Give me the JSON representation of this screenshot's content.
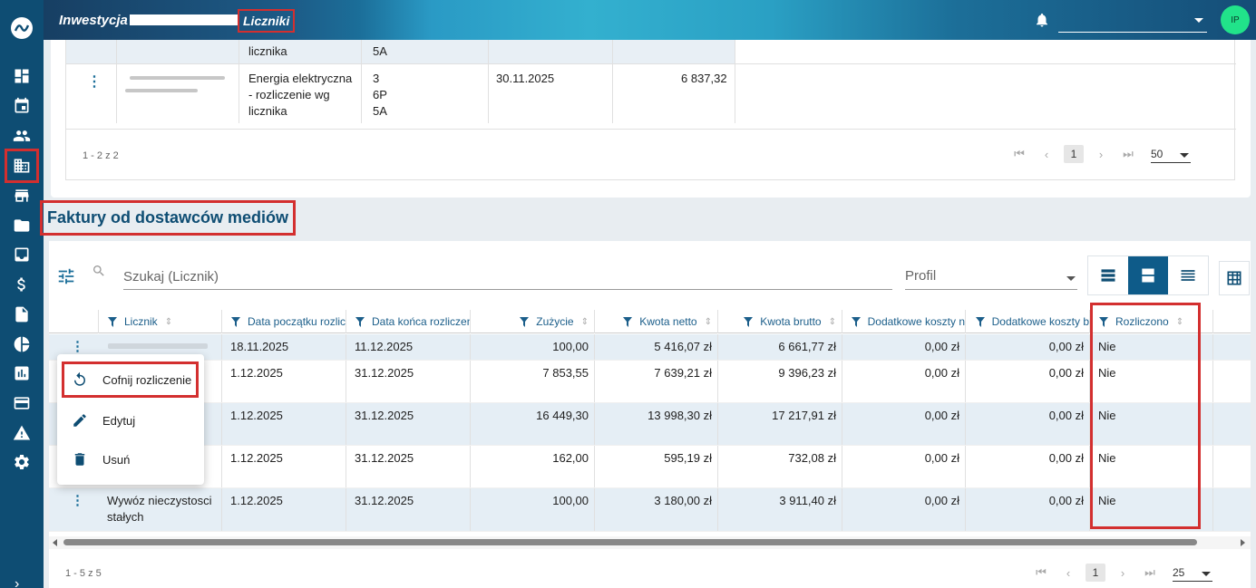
{
  "header": {
    "title": "Inwestycja",
    "breadcrumb_current": "Liczniki",
    "avatar_initials": "IP"
  },
  "top_table": {
    "row1": {
      "name_cont": "licznika",
      "meters": "5A"
    },
    "row2": {
      "type_lines": [
        "Energia elektryczna",
        "- rozliczenie wg",
        "licznika"
      ],
      "meters": [
        "3",
        "6P",
        "5A"
      ],
      "date": "30.11.2025",
      "amount": "6 837,32"
    },
    "footer": "1 - 2 z 2",
    "page": "1",
    "page_size": "50"
  },
  "section": {
    "title": "Faktury od dostawców mediów"
  },
  "toolbar": {
    "search_placeholder": "Szukaj (Licznik)",
    "profile_placeholder": "Profil"
  },
  "grid": {
    "columns": [
      "Licznik",
      "Data początku rozlic",
      "Data końca rozliczen",
      "Zużycie",
      "Kwota netto",
      "Kwota brutto",
      "Dodatkowe koszty n",
      "Dodatkowe koszty b",
      "Rozliczono"
    ],
    "rows": [
      {
        "licznik": "",
        "start": "18.11.2025",
        "end": "11.12.2025",
        "usage": "100,00",
        "net": "5 416,07 zł",
        "gross": "6 661,77 zł",
        "extra_net": "0,00 zł",
        "extra_gross": "0,00 zł",
        "settled": "Nie"
      },
      {
        "licznik": "",
        "start": "1.12.2025",
        "end": "31.12.2025",
        "usage": "7 853,55",
        "net": "7 639,21 zł",
        "gross": "9 396,23 zł",
        "extra_net": "0,00 zł",
        "extra_gross": "0,00 zł",
        "settled": "Nie"
      },
      {
        "licznik": "",
        "start": "1.12.2025",
        "end": "31.12.2025",
        "usage": "16 449,30",
        "net": "13 998,30 zł",
        "gross": "17 217,91 zł",
        "extra_net": "0,00 zł",
        "extra_gross": "0,00 zł",
        "settled": "Nie"
      },
      {
        "licznik": "",
        "start": "1.12.2025",
        "end": "31.12.2025",
        "usage": "162,00",
        "net": "595,19 zł",
        "gross": "732,08 zł",
        "extra_net": "0,00 zł",
        "extra_gross": "0,00 zł",
        "settled": "Nie"
      },
      {
        "licznik_lines": [
          "Wywóz nieczystosci",
          "stałych"
        ],
        "start": "1.12.2025",
        "end": "31.12.2025",
        "usage": "100,00",
        "net": "3 180,00 zł",
        "gross": "3 911,40 zł",
        "extra_net": "0,00 zł",
        "extra_gross": "0,00 zł",
        "settled": "Nie"
      }
    ],
    "footer": "1 - 5 z 5",
    "page": "1",
    "page_size": "25"
  },
  "context_menu": {
    "items": [
      "Cofnij rozliczenie",
      "Edytuj",
      "Usuń"
    ]
  },
  "colors": {
    "sidebar": "#0e4d73",
    "accent": "#1b6e99",
    "highlight": "#d32f2f",
    "row_alt": "#e5eef5"
  }
}
